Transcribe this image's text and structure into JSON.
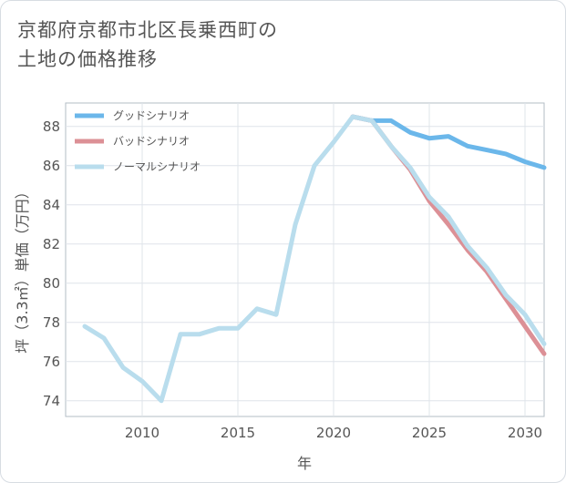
{
  "title": {
    "line1": "京都府京都市北区長乗西町の",
    "line2": "土地の価格推移"
  },
  "chart_data": {
    "type": "line",
    "xlabel": "年",
    "ylabel": "坪（3.3㎡）単価（万円）",
    "xlim": [
      2006,
      2031
    ],
    "ylim": [
      73.2,
      89.2
    ],
    "x_ticks": [
      2010,
      2015,
      2020,
      2025,
      2030
    ],
    "y_ticks": [
      74,
      76,
      78,
      80,
      82,
      84,
      86,
      88
    ],
    "x_tick_labels": [
      "2010",
      "2015",
      "2020",
      "2025",
      "2030"
    ],
    "y_tick_labels": [
      "74",
      "76",
      "78",
      "80",
      "82",
      "84",
      "86",
      "88"
    ],
    "grid": true,
    "legend_position": "top-left",
    "series": [
      {
        "name": "グッドシナリオ",
        "color": "#6bb7ea",
        "x": [
          2021,
          2022,
          2023,
          2024,
          2025,
          2026,
          2027,
          2028,
          2029,
          2030,
          2031
        ],
        "y": [
          88.5,
          88.3,
          88.3,
          87.7,
          87.4,
          87.5,
          87.0,
          86.8,
          86.6,
          86.2,
          85.9
        ]
      },
      {
        "name": "バッドシナリオ",
        "color": "#dc9096",
        "x": [
          2021,
          2022,
          2023,
          2024,
          2025,
          2026,
          2027,
          2028,
          2029,
          2030,
          2031
        ],
        "y": [
          88.5,
          88.3,
          87.0,
          85.8,
          84.2,
          83.0,
          81.7,
          80.6,
          79.2,
          77.8,
          76.4
        ]
      },
      {
        "name": "ノーマルシナリオ",
        "color": "#b9dded",
        "x": [
          2007,
          2008,
          2009,
          2010,
          2011,
          2012,
          2013,
          2014,
          2015,
          2016,
          2017,
          2018,
          2019,
          2020,
          2021,
          2022,
          2023,
          2024,
          2025,
          2026,
          2027,
          2028,
          2029,
          2030,
          2031
        ],
        "y": [
          77.8,
          77.2,
          75.7,
          75.0,
          74.0,
          77.4,
          77.4,
          77.7,
          77.7,
          78.7,
          78.4,
          83.0,
          86.0,
          87.2,
          88.5,
          88.3,
          87.0,
          85.9,
          84.4,
          83.4,
          81.9,
          80.8,
          79.4,
          78.4,
          76.9
        ]
      }
    ]
  }
}
